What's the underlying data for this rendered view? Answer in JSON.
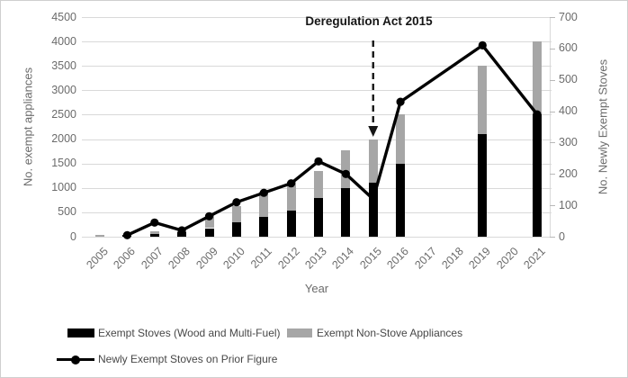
{
  "chart_data": {
    "type": "combo_stacked_bar_line",
    "title": "",
    "categories": [
      "2005",
      "2006",
      "2007",
      "2008",
      "2009",
      "2010",
      "2011",
      "2012",
      "2013",
      "2014",
      "2015",
      "2016",
      "2017",
      "2018",
      "2019",
      "2020",
      "2021"
    ],
    "series": [
      {
        "name": "Exempt Stoves (Wood and Multi-Fuel)",
        "chart_type": "stacked-bar",
        "axis": "left",
        "color": "#000000",
        "values": [
          0,
          30,
          60,
          100,
          175,
          300,
          400,
          540,
          790,
          1000,
          1100,
          1500,
          null,
          null,
          2100,
          null,
          2500
        ]
      },
      {
        "name": "Exempt Non-Stove Appliances",
        "chart_type": "stacked-bar",
        "axis": "left",
        "color": "#a6a6a6",
        "values": [
          40,
          0,
          50,
          20,
          275,
          330,
          530,
          590,
          560,
          780,
          900,
          1000,
          null,
          null,
          1400,
          null,
          1500
        ]
      },
      {
        "name": "Newly Exempt Stoves on Prior Figure",
        "chart_type": "line-markers",
        "axis": "right",
        "color": "#000000",
        "values": [
          null,
          5,
          45,
          20,
          65,
          110,
          140,
          170,
          240,
          200,
          120,
          430,
          null,
          null,
          610,
          null,
          390
        ]
      }
    ],
    "left_axis": {
      "label": "No. exempt appliances",
      "min": 0,
      "max": 4500,
      "step": 500,
      "ticks": [
        0,
        500,
        1000,
        1500,
        2000,
        2500,
        3000,
        3500,
        4000,
        4500
      ],
      "grid": true
    },
    "right_axis": {
      "label": "No. Newly Exempt Stoves",
      "min": 0,
      "max": 700,
      "step": 100,
      "ticks": [
        0,
        100,
        200,
        300,
        400,
        500,
        600,
        700
      ]
    },
    "x_axis": {
      "label": "Year"
    },
    "annotation": {
      "text": "Deregulation Act 2015",
      "target_year": "2015"
    },
    "legend_position": "bottom-left"
  },
  "colors": {
    "bar_black": "#000000",
    "bar_gray": "#a6a6a6",
    "grid": "#d9d9d9",
    "tick_text": "#6b6b6b",
    "legend_text": "#474747",
    "annotation_text": "#161616",
    "background": "#ffffff"
  }
}
